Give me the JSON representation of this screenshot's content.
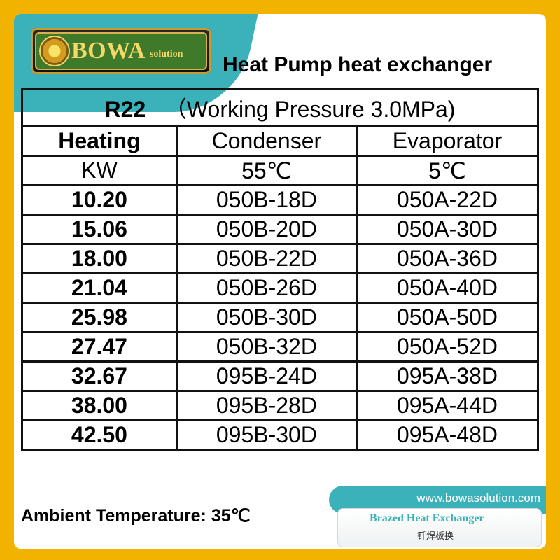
{
  "logo": {
    "brand": "BOWA",
    "suffix": "solution"
  },
  "heading": "Heat Pump heat exchanger",
  "table": {
    "refrigerant": "R22",
    "pressure_note": "（Working Pressure 3.0MPa)",
    "headers": [
      "Heating",
      "Condenser",
      "Evaporator"
    ],
    "units": [
      "KW",
      "55℃",
      "5℃"
    ],
    "rows": [
      [
        "10.20",
        "050B-18D",
        "050A-22D"
      ],
      [
        "15.06",
        "050B-20D",
        "050A-30D"
      ],
      [
        "18.00",
        "050B-22D",
        "050A-36D"
      ],
      [
        "21.04",
        "050B-26D",
        "050A-40D"
      ],
      [
        "25.98",
        "050B-30D",
        "050A-50D"
      ],
      [
        "27.47",
        "050B-32D",
        "050A-52D"
      ],
      [
        "32.67",
        "095B-24D",
        "095A-38D"
      ],
      [
        "38.00",
        "095B-28D",
        "095A-44D"
      ],
      [
        "42.50",
        "095B-30D",
        "095A-48D"
      ]
    ]
  },
  "footer": {
    "url": "www.bowasolution.com",
    "ambient": "Ambient Temperature: 35℃",
    "brand_en": "Brazed Heat Exchanger",
    "brand_cn": "钎焊板换"
  },
  "colors": {
    "accent": "#3bb2ba",
    "border_gold": "#f2b300"
  }
}
